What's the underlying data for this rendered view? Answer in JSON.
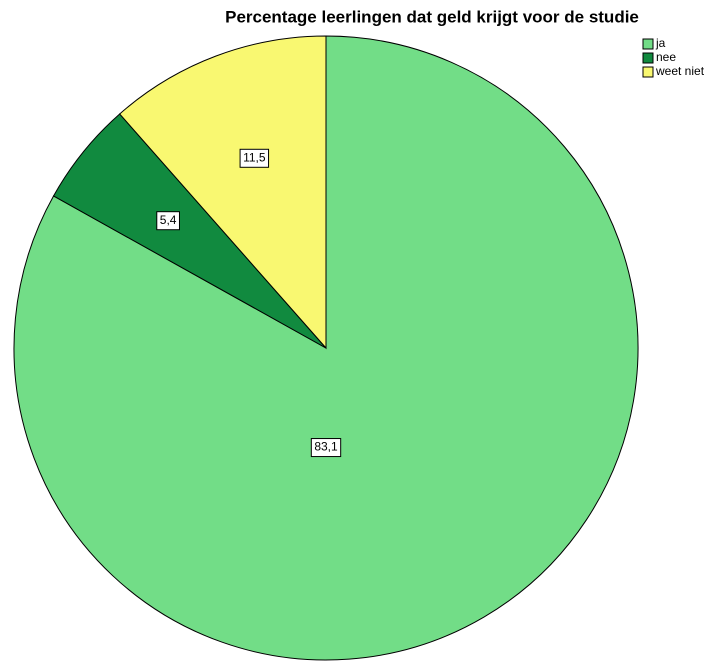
{
  "chart_data": {
    "type": "pie",
    "title": "Percentage leerlingen dat geld krijgt voor de studie",
    "categories": [
      "ja",
      "nee",
      "weet niet"
    ],
    "values": [
      83.1,
      5.4,
      11.5
    ],
    "value_labels": [
      "83,1",
      "5,4",
      "11,5"
    ],
    "colors": [
      "#72dd87",
      "#118a3f",
      "#f9f871"
    ],
    "legend": "top-right"
  }
}
